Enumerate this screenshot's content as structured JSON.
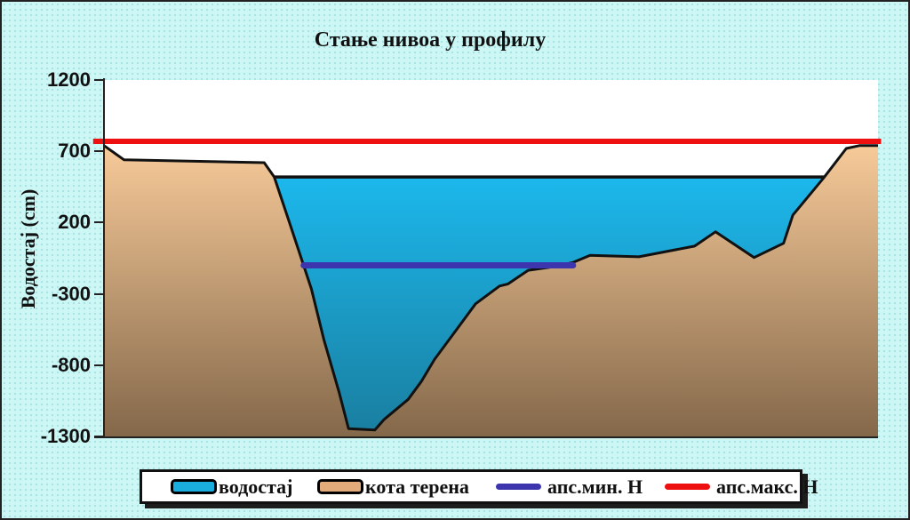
{
  "title": "Стање нивоа у профилу",
  "y_axis": {
    "label": "Водостај (cm)",
    "ticks": [
      1200,
      700,
      200,
      -300,
      -800,
      -1300
    ],
    "min": -1300,
    "max": 1200
  },
  "legend": {
    "items": [
      {
        "label": "водостај",
        "swatch": "rect",
        "color": "#1aaede"
      },
      {
        "label": "кота терена",
        "swatch": "rect",
        "color": "#e2ab79"
      },
      {
        "label": "апс.мин. Н",
        "swatch": "line",
        "color": "#3c35ae"
      },
      {
        "label": "апс.макс. Н",
        "swatch": "line",
        "color": "#ee1010"
      }
    ]
  },
  "chart_data": {
    "type": "area",
    "title": "Стање нивоа у профилу",
    "xlabel": "",
    "ylabel": "Водостај (cm)",
    "ylim": [
      -1300,
      1200
    ],
    "grid": false,
    "legend_position": "bottom",
    "series": [
      {
        "name": "кота терена",
        "type": "area",
        "color_top": "#f7ca99",
        "color_bottom": "#84684a",
        "outline_color": "#111111",
        "points_x_fraction_value_cm": [
          [
            0.0,
            740
          ],
          [
            0.026,
            640
          ],
          [
            0.207,
            620
          ],
          [
            0.22,
            520
          ],
          [
            0.239,
            210
          ],
          [
            0.268,
            -265
          ],
          [
            0.284,
            -620
          ],
          [
            0.304,
            -995
          ],
          [
            0.316,
            -1245
          ],
          [
            0.35,
            -1255
          ],
          [
            0.362,
            -1180
          ],
          [
            0.393,
            -1040
          ],
          [
            0.41,
            -915
          ],
          [
            0.427,
            -760
          ],
          [
            0.457,
            -540
          ],
          [
            0.48,
            -370
          ],
          [
            0.511,
            -245
          ],
          [
            0.522,
            -230
          ],
          [
            0.548,
            -135
          ],
          [
            0.58,
            -110
          ],
          [
            0.606,
            -80
          ],
          [
            0.628,
            -30
          ],
          [
            0.691,
            -40
          ],
          [
            0.763,
            35
          ],
          [
            0.79,
            135
          ],
          [
            0.84,
            -45
          ],
          [
            0.878,
            55
          ],
          [
            0.89,
            253
          ],
          [
            0.93,
            515
          ],
          [
            0.959,
            720
          ],
          [
            0.976,
            740
          ],
          [
            1.0,
            740
          ]
        ]
      },
      {
        "name": "водостај",
        "type": "area",
        "color_top": "#1cb8ec",
        "color_bottom": "#1a7fa1",
        "surface_line_color": "#111111",
        "level_cm": 520,
        "x_range_fraction": [
          0.22,
          0.93
        ]
      },
      {
        "name": "апс.мин. Н",
        "type": "line",
        "color": "#3c35ae",
        "value_cm": -100,
        "x_range_fraction": [
          0.258,
          0.606
        ]
      },
      {
        "name": "апс.макс. Н",
        "type": "line",
        "color": "#ee1010",
        "value_cm": 770,
        "x_range_fraction": [
          -0.014,
          1.004
        ]
      }
    ]
  }
}
